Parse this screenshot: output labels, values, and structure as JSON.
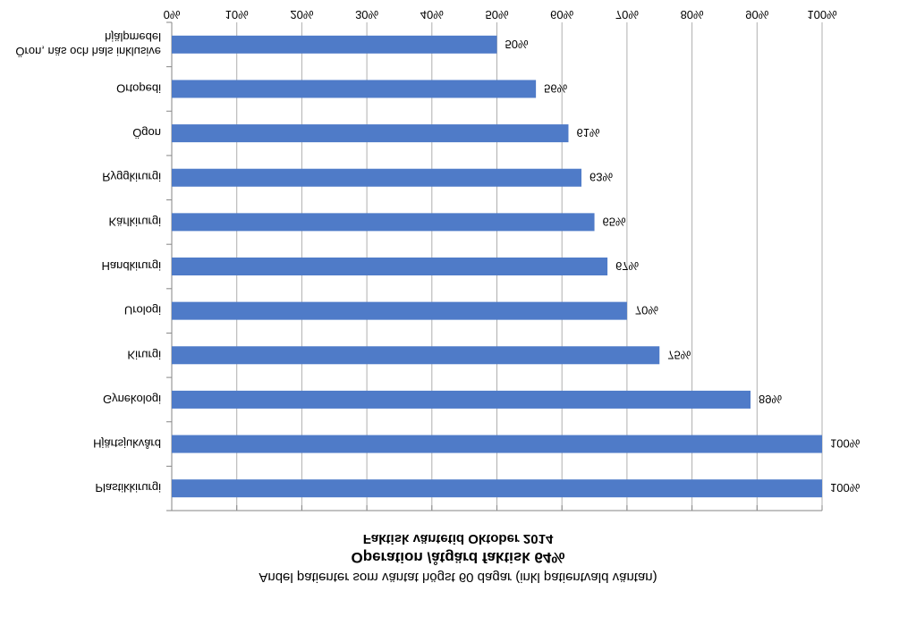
{
  "chart_data": {
    "type": "bar",
    "orientation": "horizontal",
    "title": "Operation /åtgärd faktisk 64%",
    "subtitle": "Faktisk väntetid Oktober 2014",
    "xlabel": "Andel patienter som väntat högst 60 dagar (inkl patientvald väntan)",
    "ylabel": "",
    "xlim": [
      0,
      100
    ],
    "xticks": [
      "0%",
      "10%",
      "20%",
      "30%",
      "40%",
      "50%",
      "60%",
      "70%",
      "80%",
      "90%",
      "100%"
    ],
    "grid": true,
    "legend": "none",
    "categories": [
      "Plastikkirurgi",
      "Hjärtsjukvård",
      "Gynekologi",
      "Kirurgi",
      "Urologi",
      "Handkirurgi",
      "Kärlkirurgi",
      "Ryggkirurgi",
      "Ögon",
      "Ortopedi",
      "Öron, näs och hals inklusive hjälpmedel"
    ],
    "values": [
      100,
      100,
      89,
      75,
      70,
      67,
      65,
      63,
      61,
      56,
      50
    ],
    "data_labels": [
      "100%",
      "100%",
      "89%",
      "75%",
      "70%",
      "67%",
      "65%",
      "63%",
      "61%",
      "56%",
      "50%"
    ],
    "colors": {
      "bar": "#4F7BC8",
      "grid": "#AFAFAF",
      "axis": "#868686",
      "text": "#000000"
    }
  }
}
